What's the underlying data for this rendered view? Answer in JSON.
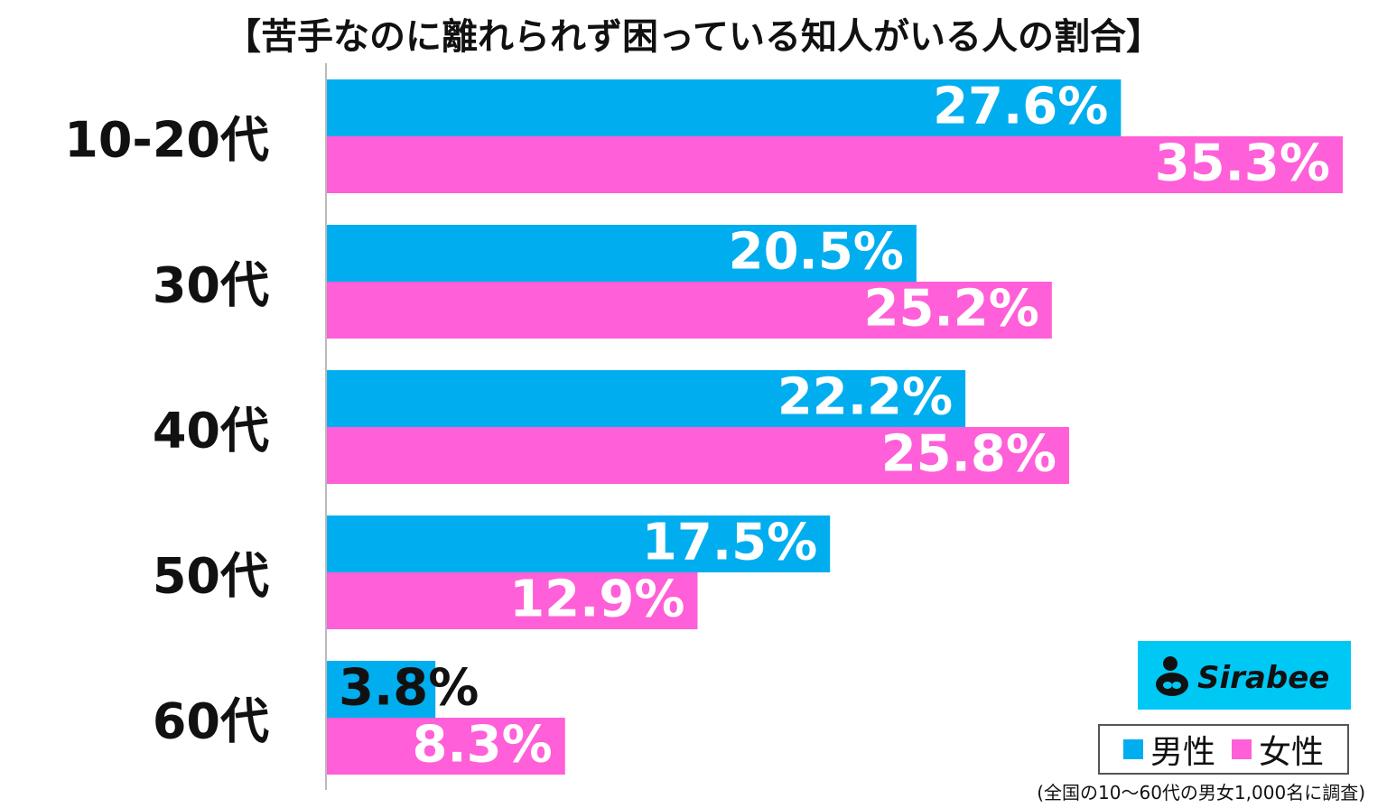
{
  "chart_data": {
    "type": "bar",
    "orientation": "horizontal",
    "title": "【苦手なのに離れられず困っている知人がいる人の割合】",
    "categories": [
      "10-20代",
      "30代",
      "40代",
      "50代",
      "60代"
    ],
    "series": [
      {
        "name": "男性",
        "values": [
          27.6,
          20.5,
          22.2,
          17.5,
          3.8
        ],
        "color": "#00AEEF"
      },
      {
        "name": "女性",
        "values": [
          35.3,
          25.2,
          25.8,
          12.9,
          8.3
        ],
        "color": "#FF5FD8"
      }
    ],
    "value_labels": {
      "男性": [
        "27.6%",
        "20.5%",
        "22.2%",
        "17.5%",
        "3.8%"
      ],
      "女性": [
        "35.3%",
        "25.2%",
        "25.8%",
        "12.9%",
        "8.3%"
      ]
    },
    "xlim": [
      0,
      35.3
    ],
    "grid": false,
    "legend_position": "bottom-right"
  },
  "logo": {
    "text": "Sirabee",
    "background": "#00C8F5"
  },
  "legend": {
    "items": [
      {
        "label": "男性",
        "color": "#00AEEF"
      },
      {
        "label": "女性",
        "color": "#FF5FD8"
      }
    ]
  },
  "footnote": "(全国の10～60代の男女1,000名に調査)"
}
